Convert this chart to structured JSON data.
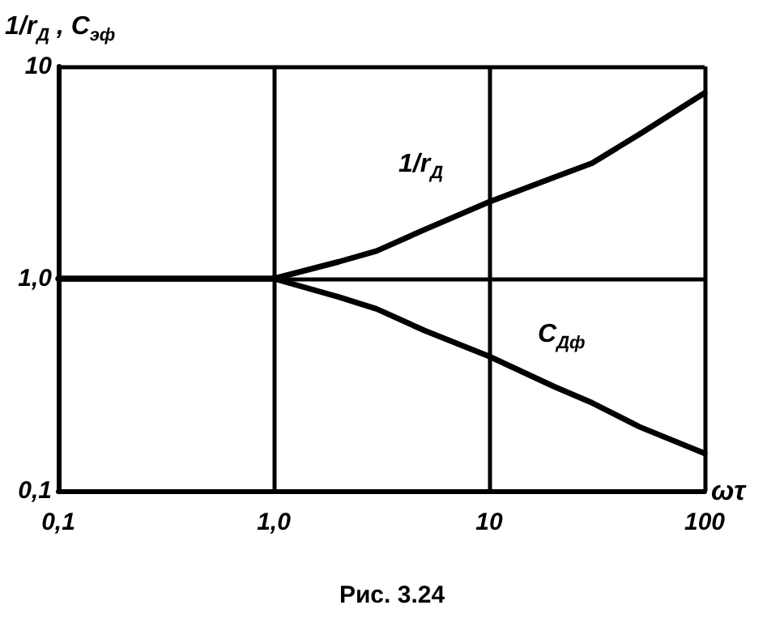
{
  "chart_data": {
    "type": "line",
    "ylabel": "1/r$_{Д}$ , C$_{эф}$",
    "xlabel": "ωτ",
    "annotations": [
      "Рис. 3.24"
    ],
    "x": [
      0.1,
      1,
      2,
      3,
      5,
      10,
      20,
      30,
      50,
      100
    ],
    "series": [
      {
        "name": "1/r$_{Д}$",
        "color": "#000000",
        "values": [
          1,
          1,
          1.2,
          1.35,
          1.7,
          2.3,
          3.0,
          3.5,
          4.8,
          7.5
        ]
      },
      {
        "name": "C$_{Дф}$",
        "color": "#000000",
        "values": [
          1,
          1,
          0.82,
          0.72,
          0.57,
          0.43,
          0.31,
          0.26,
          0.2,
          0.15
        ]
      }
    ],
    "log": "xy",
    "xlim": [
      0.1,
      100
    ],
    "ylim": [
      0.1,
      10
    ],
    "xticks": [
      {
        "value": 0.1,
        "label": "0,1"
      },
      {
        "value": 1,
        "label": "1,0"
      },
      10,
      100
    ],
    "yticks": [
      {
        "value": 0.1,
        "label": "0,1"
      },
      {
        "value": 1,
        "label": "1,0"
      },
      10
    ],
    "grid": true,
    "marker": "none",
    "line_style": "solid"
  }
}
